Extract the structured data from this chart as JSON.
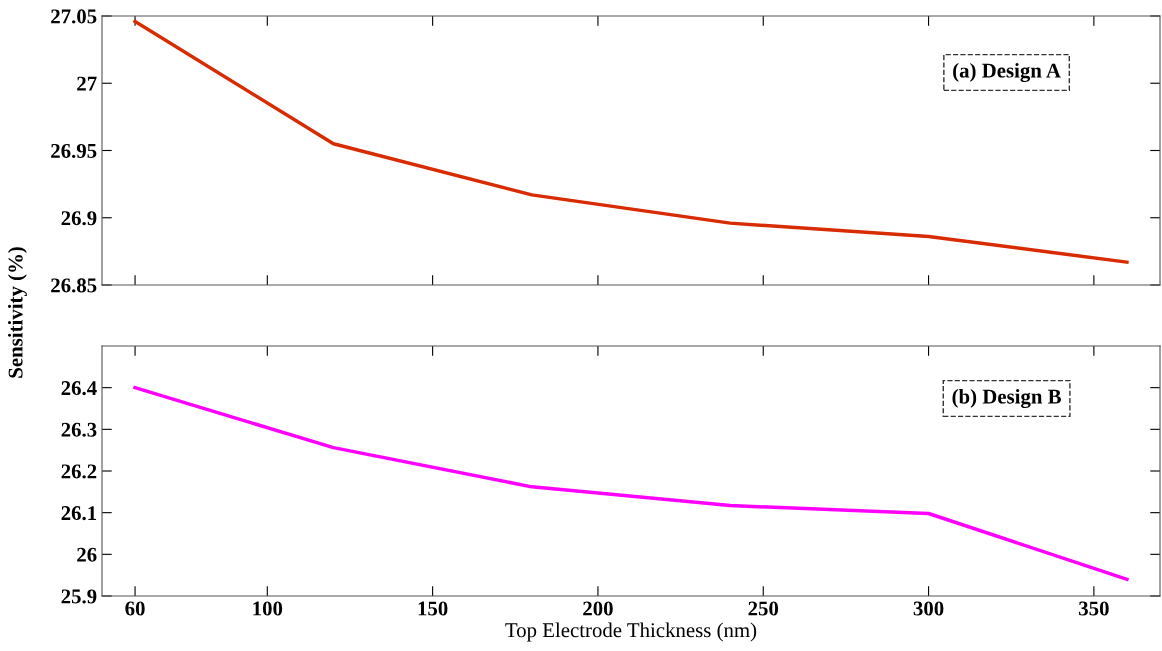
{
  "chart_data": [
    {
      "type": "line",
      "ylabel": "Sensitivity (%)",
      "x": [
        60,
        120,
        180,
        240,
        300,
        360
      ],
      "series": [
        {
          "color": "#d82c00",
          "values": [
            27.046,
            26.955,
            26.917,
            26.896,
            26.886,
            26.867
          ]
        }
      ],
      "xlim": [
        50,
        370
      ],
      "xticks": [
        60,
        100,
        150,
        200,
        250,
        300,
        350
      ],
      "ylim": [
        26.85,
        27.05
      ],
      "yticks": [
        26.85,
        26.9,
        26.95,
        27,
        27.05
      ],
      "tick_labels": "y",
      "annotations": [
        "(a) Design A"
      ],
      "grid": false,
      "legend": false
    },
    {
      "type": "line",
      "xlabel": "Top Electrode Thickness (nm)",
      "x": [
        60,
        120,
        180,
        240,
        300,
        360
      ],
      "series": [
        {
          "color": "#ff00ff",
          "values": [
            26.4,
            26.256,
            26.162,
            26.117,
            26.098,
            25.94
          ]
        }
      ],
      "xlim": [
        50,
        370
      ],
      "xticks": [
        60,
        100,
        150,
        200,
        250,
        300,
        350
      ],
      "ylim": [
        25.9,
        26.5
      ],
      "yticks": [
        25.9,
        26,
        26.1,
        26.2,
        26.3,
        26.4
      ],
      "annotations": [
        "(b) Design B"
      ],
      "grid": false,
      "legend": false
    }
  ]
}
